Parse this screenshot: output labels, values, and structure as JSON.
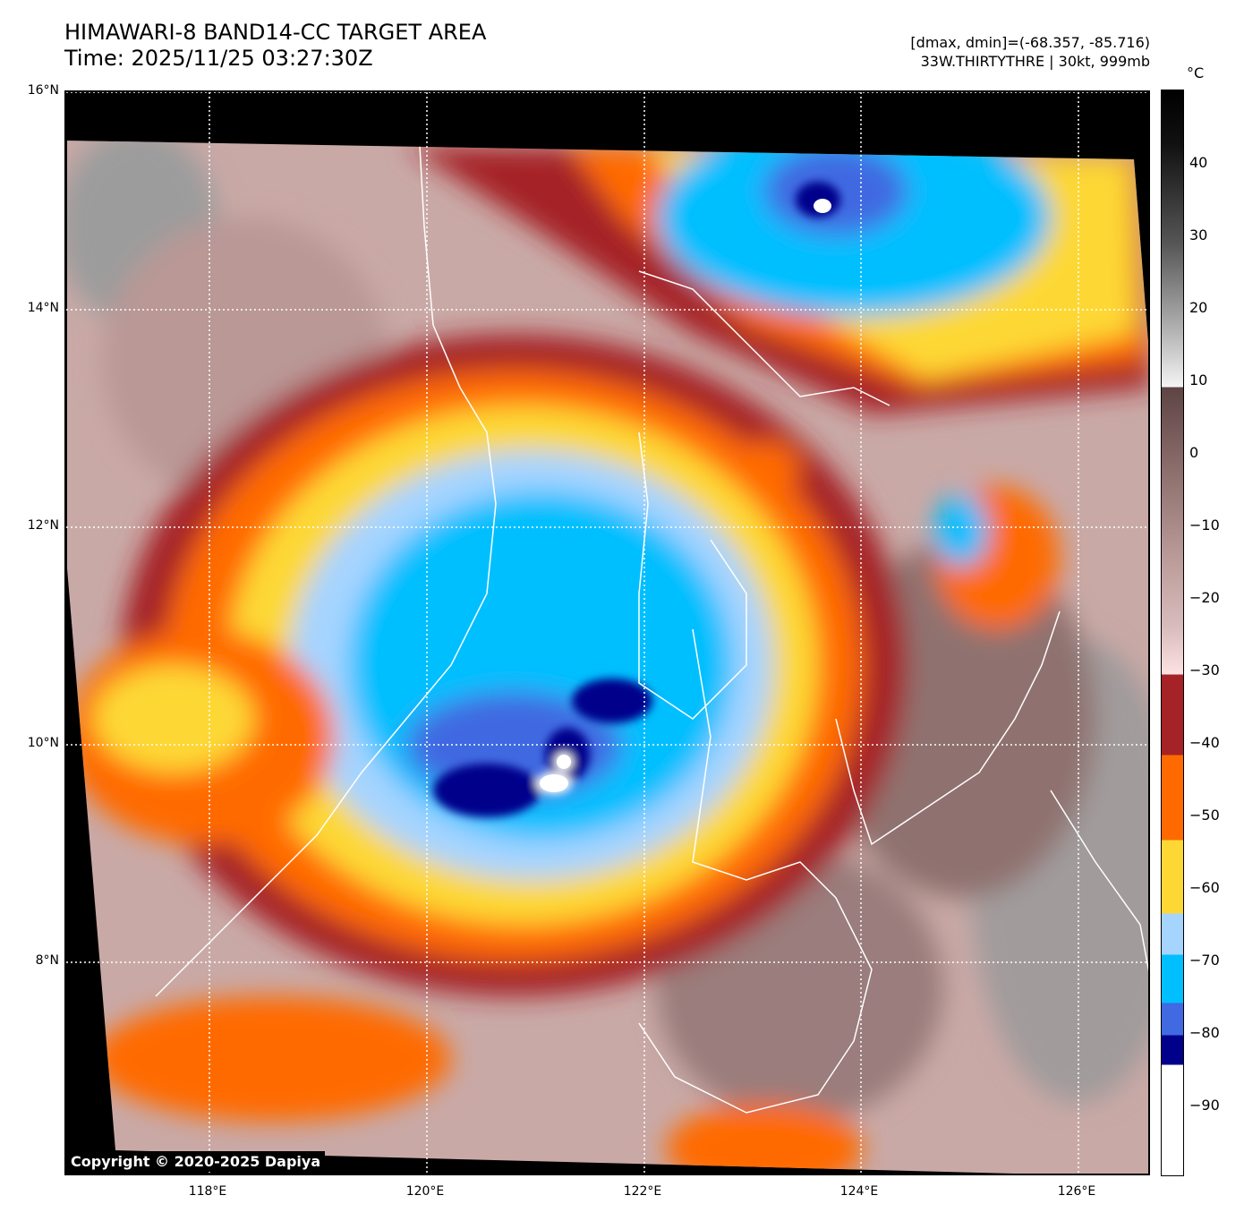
{
  "header": {
    "title": "HIMAWARI-8 BAND14-CC TARGET AREA",
    "time": "Time: 2025/11/25 03:27:30Z",
    "dmax_dmin": "[dmax, dmin]=(-68.357, -85.716)",
    "storm": "33W.THIRTYTHRE | 30kt, 999mb"
  },
  "colorbar": {
    "unit": "°C",
    "ticks": [
      "40",
      "30",
      "20",
      "10",
      "0",
      "−10",
      "−20",
      "−30",
      "−40",
      "−50",
      "−60",
      "−70",
      "−80",
      "−90"
    ],
    "colors": {
      "dark_red": "#a52326",
      "orange": "#ff6a00",
      "yellow": "#fdd835",
      "light_blue": "#a5d4ff",
      "cyan": "#00bfff",
      "royal_blue": "#4169e1",
      "navy": "#00008b",
      "white": "#ffffff"
    }
  },
  "axes": {
    "lat_labels": [
      "16°N",
      "14°N",
      "12°N",
      "10°N",
      "8°N"
    ],
    "lon_labels": [
      "118°E",
      "120°E",
      "122°E",
      "124°E",
      "126°E"
    ]
  },
  "copyright": "Copyright © 2020-2025 Dapiya"
}
